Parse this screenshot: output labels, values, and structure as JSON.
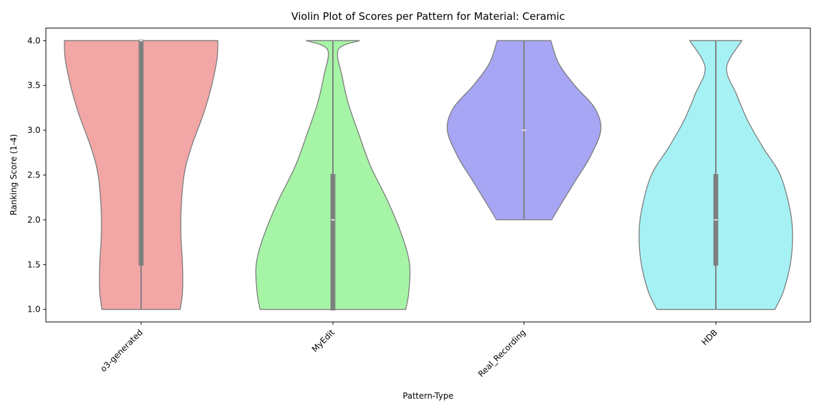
{
  "chart_data": {
    "type": "violin",
    "title": "Violin Plot of Scores per Pattern for Material: Ceramic",
    "xlabel": "Pattern-Type",
    "ylabel": "Ranking Score (1-4)",
    "ylim": [
      0.86,
      4.14
    ],
    "yticks": [
      "1.0",
      "1.5",
      "2.0",
      "2.5",
      "3.0",
      "3.5",
      "4.0"
    ],
    "grid": false,
    "categories": [
      "o3-generated",
      "MyEdit",
      "Real_Recording",
      "HDB"
    ],
    "violins": [
      {
        "category": "o3-generated",
        "color": "#f2a6a6",
        "min": 1.0,
        "max": 4.0,
        "q1": 1.5,
        "median": 4.0,
        "q3": 4.0,
        "profile": [
          [
            1.0,
            0.51
          ],
          [
            1.2,
            0.54
          ],
          [
            1.5,
            0.54
          ],
          [
            1.8,
            0.52
          ],
          [
            2.1,
            0.52
          ],
          [
            2.5,
            0.56
          ],
          [
            2.8,
            0.65
          ],
          [
            3.2,
            0.82
          ],
          [
            3.5,
            0.92
          ],
          [
            3.8,
            0.99
          ],
          [
            4.0,
            1.0
          ]
        ]
      },
      {
        "category": "MyEdit",
        "color": "#a6f4a6",
        "min": 1.0,
        "max": 4.0,
        "q1": 1.0,
        "median": 2.0,
        "q3": 2.5,
        "profile": [
          [
            1.0,
            0.95
          ],
          [
            1.2,
            0.99
          ],
          [
            1.5,
            1.0
          ],
          [
            1.8,
            0.91
          ],
          [
            2.2,
            0.72
          ],
          [
            2.6,
            0.49
          ],
          [
            3.0,
            0.32
          ],
          [
            3.3,
            0.2
          ],
          [
            3.6,
            0.12
          ],
          [
            3.9,
            0.07
          ],
          [
            4.0,
            0.35
          ]
        ]
      },
      {
        "category": "Real_Recording",
        "color": "#a6a6f4",
        "min": 2.0,
        "max": 4.0,
        "q1": 3.0,
        "median": 3.0,
        "q3": 3.0,
        "profile": [
          [
            2.0,
            0.36
          ],
          [
            2.2,
            0.5
          ],
          [
            2.45,
            0.68
          ],
          [
            2.7,
            0.86
          ],
          [
            3.0,
            1.0
          ],
          [
            3.25,
            0.92
          ],
          [
            3.5,
            0.66
          ],
          [
            3.75,
            0.45
          ],
          [
            4.0,
            0.35
          ]
        ]
      },
      {
        "category": "HDB",
        "color": "#a6f1f4",
        "min": 1.0,
        "max": 4.0,
        "q1": 1.5,
        "median": 2.0,
        "q3": 2.5,
        "profile": [
          [
            1.0,
            0.77
          ],
          [
            1.2,
            0.88
          ],
          [
            1.5,
            0.97
          ],
          [
            1.8,
            1.0
          ],
          [
            2.1,
            0.97
          ],
          [
            2.5,
            0.84
          ],
          [
            2.8,
            0.62
          ],
          [
            3.1,
            0.42
          ],
          [
            3.4,
            0.27
          ],
          [
            3.7,
            0.14
          ],
          [
            4.0,
            0.34
          ]
        ]
      }
    ]
  }
}
